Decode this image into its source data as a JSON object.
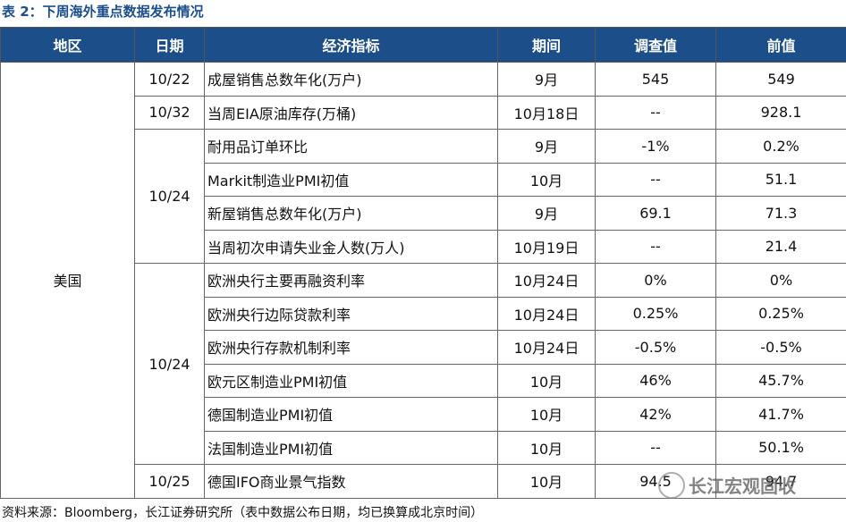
{
  "title": "表 2：下周海外重点数据发布情况",
  "table": {
    "header": [
      "地区",
      "日期",
      "经济指标",
      "期间",
      "调查值",
      "前值"
    ],
    "region": "美国",
    "groups": [
      {
        "date": "10/22",
        "rows": [
          [
            "成屋销售总数年化(万户)",
            "9月",
            "545",
            "549"
          ]
        ]
      },
      {
        "date": "10/32",
        "rows": [
          [
            "当周EIA原油库存(万桶)",
            "10月18日",
            "--",
            "928.1"
          ]
        ]
      },
      {
        "date": "10/24",
        "rows": [
          [
            "耐用品订单环比",
            "9月",
            "-1%",
            "0.2%"
          ],
          [
            "Markit制造业PMI初值",
            "10月",
            "--",
            "51.1"
          ],
          [
            "新屋销售总数年化(万户)",
            "9月",
            "69.1",
            "71.3"
          ],
          [
            "当周初次申请失业金人数(万人)",
            "10月19日",
            "--",
            "21.4"
          ]
        ]
      },
      {
        "date": "10/24",
        "rows": [
          [
            "欧洲央行主要再融资利率",
            "10月24日",
            "0%",
            "0%"
          ],
          [
            "欧洲央行边际贷款利率",
            "10月24日",
            "0.25%",
            "0.25%"
          ],
          [
            "欧洲央行存款机制利率",
            "10月24日",
            "-0.5%",
            "-0.5%"
          ],
          [
            "欧元区制造业PMI初值",
            "10月",
            "46%",
            "45.7%"
          ],
          [
            "德国制造业PMI初值",
            "10月",
            "42%",
            "41.7%"
          ],
          [
            "法国制造业PMI初值",
            "10月",
            "--",
            "50.1%"
          ]
        ]
      },
      {
        "date": "10/25",
        "rows": [
          [
            "德国IFO商业景气指数",
            "10月",
            "94.5",
            "94.7"
          ]
        ]
      }
    ]
  },
  "source": "资料来源：Bloomberg，长江证券研究所（表中数据公布日期，均已换算成北京时间）",
  "watermark": "长江宏观固收"
}
